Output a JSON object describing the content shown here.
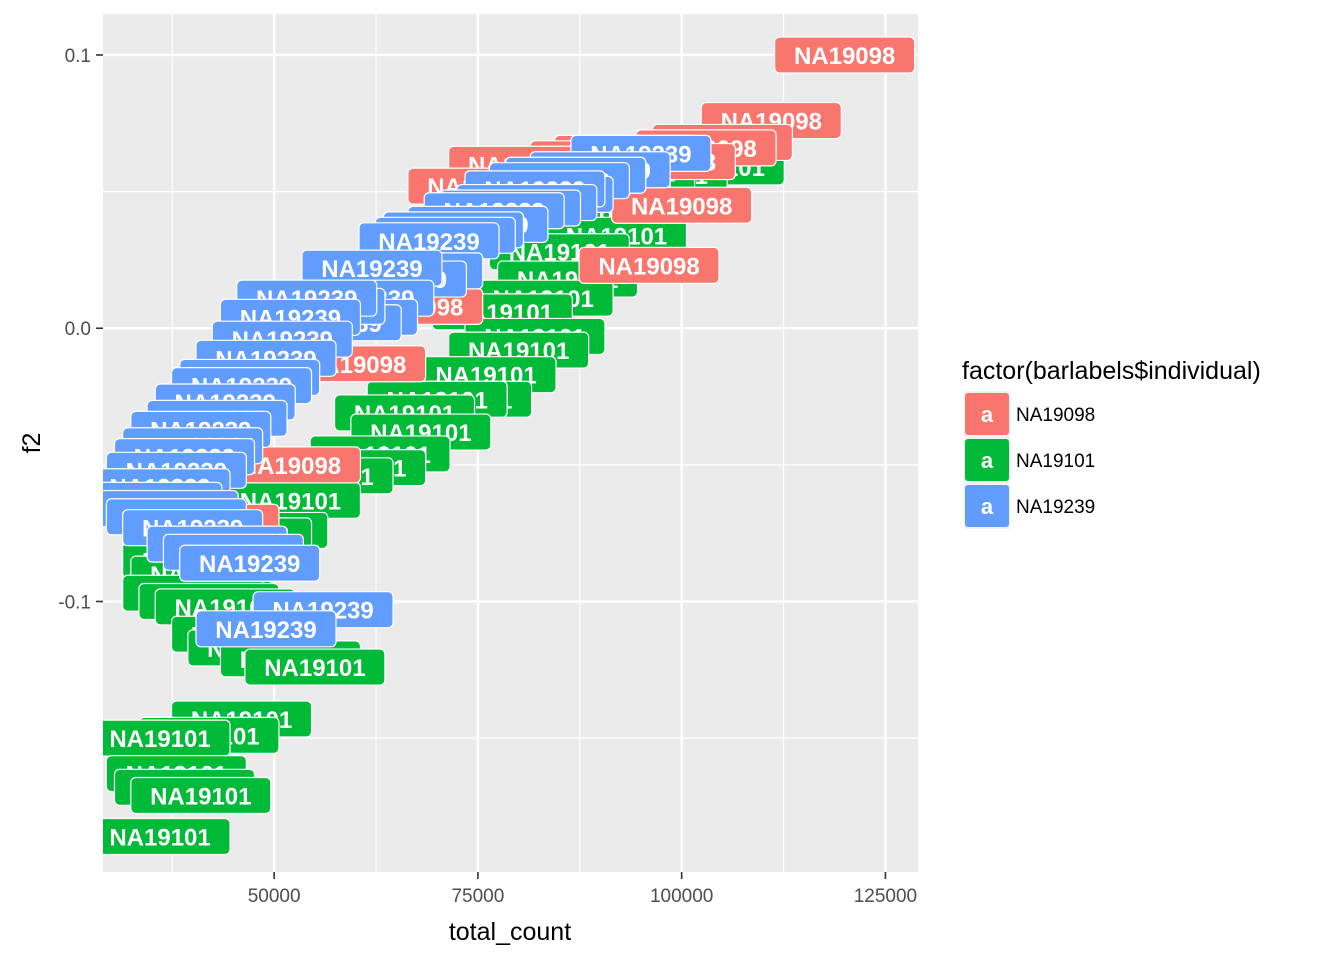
{
  "chart_data": {
    "type": "scatter",
    "geom": "label",
    "title": "",
    "xlabel": "total_count",
    "ylabel": "f2",
    "xlim": [
      29000,
      129000
    ],
    "ylim": [
      -0.199,
      0.115
    ],
    "x_ticks": [
      50000,
      75000,
      100000,
      125000
    ],
    "x_tick_labels": [
      "50000",
      "75000",
      "100000",
      "125000"
    ],
    "y_ticks": [
      -0.1,
      0.0,
      0.1
    ],
    "y_tick_labels": [
      "-0.1",
      "0.0",
      "0.1"
    ],
    "grid": true,
    "legend": {
      "title": "factor(barlabels$individual)",
      "placement": "right",
      "key_glyph": "a",
      "entries": [
        {
          "name": "NA19098",
          "color": "#F8766D"
        },
        {
          "name": "NA19101",
          "color": "#00BA38"
        },
        {
          "name": "NA19239",
          "color": "#619CFF"
        }
      ]
    },
    "series": [
      {
        "name": "NA19098",
        "color": "#F8766D",
        "x": [
          120000,
          111000,
          105000,
          103000,
          98000,
          100000,
          93000,
          90000,
          88000,
          96000,
          80000,
          75000,
          67000,
          60000,
          52000,
          42000
        ],
        "y": [
          0.1,
          0.076,
          0.068,
          0.066,
          0.061,
          0.045,
          0.064,
          0.062,
          0.058,
          0.023,
          0.06,
          0.052,
          0.008,
          -0.013,
          -0.05,
          -0.071
        ]
      },
      {
        "name": "NA19101",
        "color": "#00BA38",
        "x": [
          104000,
          97000,
          93000,
          90000,
          88000,
          92000,
          85000,
          86000,
          83000,
          78000,
          82000,
          80000,
          76000,
          73000,
          70000,
          66000,
          68000,
          63000,
          60000,
          56000,
          52000,
          48000,
          46000,
          42000,
          40000,
          41000,
          40000,
          42000,
          44000,
          46000,
          48000,
          52000,
          55000,
          46000,
          42000,
          36000,
          38000,
          39000,
          41000,
          36000
        ],
        "y": [
          0.059,
          0.056,
          0.057,
          0.053,
          0.042,
          0.034,
          0.028,
          0.018,
          0.011,
          0.006,
          -0.003,
          -0.008,
          -0.017,
          -0.026,
          -0.026,
          -0.031,
          -0.038,
          -0.046,
          -0.051,
          -0.054,
          -0.063,
          -0.074,
          -0.076,
          -0.08,
          -0.085,
          -0.09,
          -0.097,
          -0.1,
          -0.102,
          -0.112,
          -0.117,
          -0.121,
          -0.124,
          -0.143,
          -0.149,
          -0.15,
          -0.163,
          -0.168,
          -0.171,
          -0.186
        ]
      },
      {
        "name": "NA19239",
        "color": "#619CFF",
        "x": [
          95000,
          90000,
          87000,
          85000,
          83000,
          82000,
          81000,
          79000,
          77000,
          75000,
          72000,
          71000,
          69000,
          67000,
          65000,
          62000,
          61000,
          59000,
          57000,
          55000,
          54000,
          52000,
          51000,
          49000,
          47000,
          46000,
          44000,
          43000,
          41000,
          40000,
          39000,
          38000,
          36000,
          35000,
          37000,
          38000,
          40000,
          43000,
          45000,
          47000,
          56000,
          49000
        ],
        "y": [
          0.064,
          0.058,
          0.056,
          0.054,
          0.049,
          0.051,
          0.046,
          0.044,
          0.043,
          0.038,
          0.036,
          0.034,
          0.032,
          0.021,
          0.018,
          0.022,
          0.011,
          0.004,
          0.002,
          0.008,
          0.011,
          0.004,
          -0.004,
          -0.011,
          -0.018,
          -0.021,
          -0.027,
          -0.033,
          -0.037,
          -0.043,
          -0.047,
          -0.052,
          -0.058,
          -0.063,
          -0.066,
          -0.069,
          -0.073,
          -0.079,
          -0.082,
          -0.086,
          -0.103,
          -0.11
        ]
      }
    ]
  }
}
